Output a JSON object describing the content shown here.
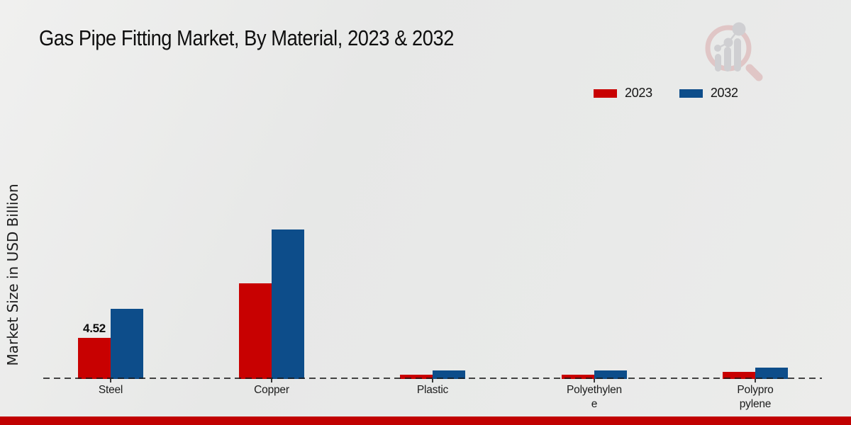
{
  "chart_data": {
    "type": "bar",
    "title": "Gas Pipe Fitting Market, By Material, 2023 & 2032",
    "xlabel": "",
    "ylabel": "Market Size in USD Billion",
    "unit": "USD Billion",
    "categories": [
      "Steel",
      "Copper",
      "Plastic",
      "Polyethylen\ne",
      "Polypro\npylene"
    ],
    "series": [
      {
        "name": "2023",
        "color": "#c80101",
        "values": [
          4.52,
          10.55,
          0.45,
          0.45,
          0.8
        ]
      },
      {
        "name": "2032",
        "color": "#0d4d8a",
        "values": [
          7.7,
          16.5,
          0.95,
          0.9,
          1.25
        ]
      }
    ],
    "annotations": [
      {
        "category_index": 0,
        "series_index": 0,
        "text": "4.52"
      }
    ],
    "legend_position": "top-right",
    "grid": false,
    "baseline_style": "dashed",
    "baseline_color": "#1a1a1a"
  },
  "legend": {
    "items": [
      {
        "label": "2023",
        "color": "#c80101"
      },
      {
        "label": "2032",
        "color": "#0d4d8a"
      }
    ]
  },
  "watermark": {
    "name": "market-research-future-logo"
  },
  "footer": {
    "stripe_color": "#c10101"
  }
}
